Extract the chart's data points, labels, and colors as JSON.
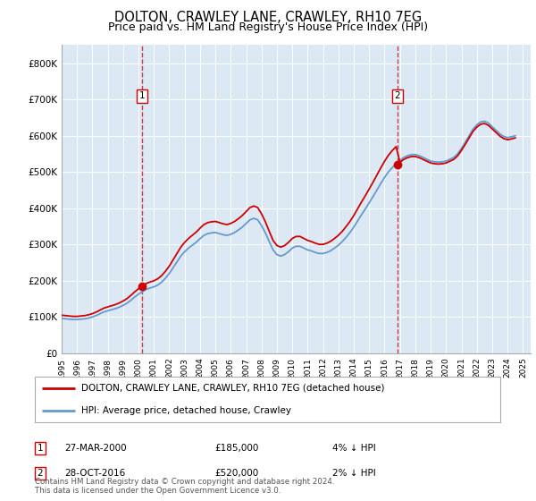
{
  "title": "DOLTON, CRAWLEY LANE, CRAWLEY, RH10 7EG",
  "subtitle": "Price paid vs. HM Land Registry's House Price Index (HPI)",
  "title_fontsize": 10.5,
  "subtitle_fontsize": 9,
  "ylabel_ticks": [
    "£0",
    "£100K",
    "£200K",
    "£300K",
    "£400K",
    "£500K",
    "£600K",
    "£700K",
    "£800K"
  ],
  "ytick_values": [
    0,
    100000,
    200000,
    300000,
    400000,
    500000,
    600000,
    700000,
    800000
  ],
  "ylim": [
    0,
    850000
  ],
  "xlim_start": 1995.0,
  "xlim_end": 2025.5,
  "background_color": "#dce9f5",
  "figure_bg": "#ffffff",
  "line_color_property": "#cc0000",
  "line_color_hpi": "#6699cc",
  "sale1_date_num": 2000.23,
  "sale1_price": 185000,
  "sale1_label": "27-MAR-2000",
  "sale1_price_str": "£185,000",
  "sale1_pct": "4% ↓ HPI",
  "sale2_date_num": 2016.83,
  "sale2_price": 520000,
  "sale2_label": "28-OCT-2016",
  "sale2_price_str": "£520,000",
  "sale2_pct": "2% ↓ HPI",
  "legend_label_property": "DOLTON, CRAWLEY LANE, CRAWLEY, RH10 7EG (detached house)",
  "legend_label_hpi": "HPI: Average price, detached house, Crawley",
  "footnote": "Contains HM Land Registry data © Crown copyright and database right 2024.\nThis data is licensed under the Open Government Licence v3.0.",
  "hpi_years": [
    1995.0,
    1995.25,
    1995.5,
    1995.75,
    1996.0,
    1996.25,
    1996.5,
    1996.75,
    1997.0,
    1997.25,
    1997.5,
    1997.75,
    1998.0,
    1998.25,
    1998.5,
    1998.75,
    1999.0,
    1999.25,
    1999.5,
    1999.75,
    2000.0,
    2000.25,
    2000.5,
    2000.75,
    2001.0,
    2001.25,
    2001.5,
    2001.75,
    2002.0,
    2002.25,
    2002.5,
    2002.75,
    2003.0,
    2003.25,
    2003.5,
    2003.75,
    2004.0,
    2004.25,
    2004.5,
    2004.75,
    2005.0,
    2005.25,
    2005.5,
    2005.75,
    2006.0,
    2006.25,
    2006.5,
    2006.75,
    2007.0,
    2007.25,
    2007.5,
    2007.75,
    2008.0,
    2008.25,
    2008.5,
    2008.75,
    2009.0,
    2009.25,
    2009.5,
    2009.75,
    2010.0,
    2010.25,
    2010.5,
    2010.75,
    2011.0,
    2011.25,
    2011.5,
    2011.75,
    2012.0,
    2012.25,
    2012.5,
    2012.75,
    2013.0,
    2013.25,
    2013.5,
    2013.75,
    2014.0,
    2014.25,
    2014.5,
    2014.75,
    2015.0,
    2015.25,
    2015.5,
    2015.75,
    2016.0,
    2016.25,
    2016.5,
    2016.75,
    2017.0,
    2017.25,
    2017.5,
    2017.75,
    2018.0,
    2018.25,
    2018.5,
    2018.75,
    2019.0,
    2019.25,
    2019.5,
    2019.75,
    2020.0,
    2020.25,
    2020.5,
    2020.75,
    2021.0,
    2021.25,
    2021.5,
    2021.75,
    2022.0,
    2022.25,
    2022.5,
    2022.75,
    2023.0,
    2023.25,
    2023.5,
    2023.75,
    2024.0,
    2024.25,
    2024.5
  ],
  "hpi_values": [
    96000,
    95000,
    94000,
    93000,
    93000,
    94000,
    95000,
    97000,
    100000,
    104000,
    109000,
    114000,
    117000,
    120000,
    123000,
    127000,
    132000,
    138000,
    146000,
    155000,
    163000,
    170000,
    176000,
    180000,
    183000,
    188000,
    196000,
    207000,
    220000,
    236000,
    252000,
    268000,
    280000,
    290000,
    298000,
    306000,
    316000,
    325000,
    330000,
    332000,
    333000,
    330000,
    327000,
    325000,
    328000,
    333000,
    340000,
    348000,
    358000,
    368000,
    372000,
    368000,
    352000,
    332000,
    308000,
    285000,
    272000,
    268000,
    272000,
    280000,
    290000,
    295000,
    295000,
    290000,
    285000,
    282000,
    278000,
    275000,
    275000,
    278000,
    283000,
    290000,
    298000,
    308000,
    320000,
    333000,
    348000,
    365000,
    382000,
    398000,
    415000,
    432000,
    450000,
    468000,
    485000,
    500000,
    512000,
    522000,
    532000,
    540000,
    545000,
    548000,
    548000,
    545000,
    540000,
    535000,
    530000,
    528000,
    527000,
    528000,
    530000,
    535000,
    540000,
    550000,
    565000,
    582000,
    600000,
    618000,
    630000,
    638000,
    640000,
    635000,
    625000,
    615000,
    605000,
    598000,
    595000,
    597000,
    600000
  ]
}
